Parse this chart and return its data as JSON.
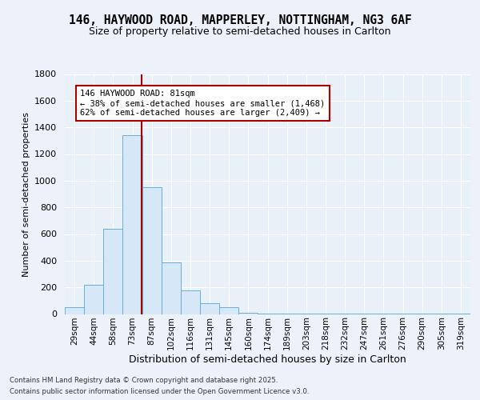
{
  "title_line1": "146, HAYWOOD ROAD, MAPPERLEY, NOTTINGHAM, NG3 6AF",
  "title_line2": "Size of property relative to semi-detached houses in Carlton",
  "xlabel": "Distribution of semi-detached houses by size in Carlton",
  "ylabel": "Number of semi-detached properties",
  "bar_labels": [
    "29sqm",
    "44sqm",
    "58sqm",
    "73sqm",
    "87sqm",
    "102sqm",
    "116sqm",
    "131sqm",
    "145sqm",
    "160sqm",
    "174sqm",
    "189sqm",
    "203sqm",
    "218sqm",
    "232sqm",
    "247sqm",
    "261sqm",
    "276sqm",
    "290sqm",
    "305sqm",
    "319sqm"
  ],
  "bar_values": [
    50,
    220,
    640,
    1340,
    950,
    390,
    175,
    80,
    50,
    10,
    5,
    3,
    3,
    2,
    2,
    1,
    1,
    1,
    1,
    1,
    1
  ],
  "bar_color": "#d6e8f7",
  "bar_edge_color": "#6aaed6",
  "vline_color": "#aa0000",
  "annotation_text_line1": "146 HAYWOOD ROAD: 81sqm",
  "annotation_text_line2": "← 38% of semi-detached houses are smaller (1,468)",
  "annotation_text_line3": "62% of semi-detached houses are larger (2,409) →",
  "annotation_box_edge": "#aa0000",
  "ylim": [
    0,
    1800
  ],
  "yticks": [
    0,
    200,
    400,
    600,
    800,
    1000,
    1200,
    1400,
    1600,
    1800
  ],
  "bg_color": "#e8f0f8",
  "fig_bg_color": "#edf2fa",
  "footer_line1": "Contains HM Land Registry data © Crown copyright and database right 2025.",
  "footer_line2": "Contains public sector information licensed under the Open Government Licence v3.0.",
  "vline_pos": 3.47
}
